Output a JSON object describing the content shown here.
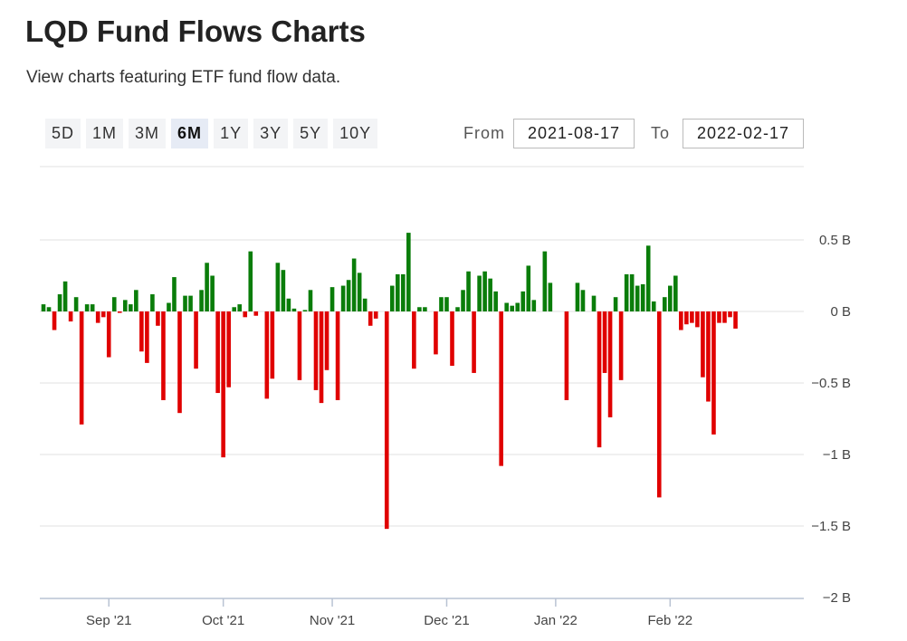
{
  "header": {
    "title": "LQD Fund Flows Charts",
    "subtitle": "View charts featuring ETF fund flow data."
  },
  "range_buttons": [
    {
      "label": "5D",
      "active": false
    },
    {
      "label": "1M",
      "active": false
    },
    {
      "label": "3M",
      "active": false
    },
    {
      "label": "6M",
      "active": true
    },
    {
      "label": "1Y",
      "active": false
    },
    {
      "label": "3Y",
      "active": false
    },
    {
      "label": "5Y",
      "active": false
    },
    {
      "label": "10Y",
      "active": false
    }
  ],
  "date_range": {
    "from_label": "From",
    "from_value": "2021-08-17",
    "to_label": "To",
    "to_value": "2022-02-17"
  },
  "colors": {
    "positive": "#0a7d0a",
    "negative": "#e00000",
    "grid": "#e2e2e2",
    "axis": "#b9c3d3"
  },
  "chart_data": {
    "type": "bar",
    "title": "",
    "xlabel": "",
    "ylabel": "",
    "ylim": [
      -2,
      0.5
    ],
    "y_ticks": [
      {
        "value": 0.5,
        "label": "0.5 B"
      },
      {
        "value": 0,
        "label": "0 B"
      },
      {
        "value": -0.5,
        "label": "−0.5 B"
      },
      {
        "value": -1,
        "label": "−1 B"
      },
      {
        "value": -1.5,
        "label": "−1.5 B"
      },
      {
        "value": -2,
        "label": "−2 B"
      }
    ],
    "x_ticks": [
      {
        "label": "Sep '21",
        "index": 12
      },
      {
        "label": "Oct '21",
        "index": 33
      },
      {
        "label": "Nov '21",
        "index": 53
      },
      {
        "label": "Dec '21",
        "index": 74
      },
      {
        "label": "Jan '22",
        "index": 94
      },
      {
        "label": "Feb '22",
        "index": 115
      }
    ],
    "grid": true,
    "legend": "none",
    "unit": "B",
    "values": [
      0.05,
      0.03,
      -0.13,
      0.12,
      0.21,
      -0.07,
      0.1,
      -0.79,
      0.05,
      0.05,
      -0.08,
      -0.04,
      -0.32,
      0.1,
      -0.01,
      0.08,
      0.05,
      0.15,
      -0.28,
      -0.36,
      0.12,
      -0.1,
      -0.62,
      0.06,
      0.24,
      -0.71,
      0.11,
      0.11,
      -0.4,
      0.15,
      0.34,
      0.25,
      -0.57,
      -1.02,
      -0.53,
      0.03,
      0.05,
      -0.04,
      0.42,
      -0.03,
      0.0,
      -0.61,
      -0.47,
      0.34,
      0.29,
      0.09,
      0.02,
      -0.48,
      0.01,
      0.15,
      -0.55,
      -0.64,
      -0.41,
      0.17,
      -0.62,
      0.18,
      0.22,
      0.37,
      0.27,
      0.09,
      -0.1,
      -0.05,
      0.0,
      -1.52,
      0.18,
      0.26,
      0.26,
      0.55,
      -0.4,
      0.03,
      0.03,
      0.0,
      -0.3,
      0.1,
      0.1,
      -0.38,
      0.03,
      0.15,
      0.28,
      -0.43,
      0.25,
      0.28,
      0.23,
      0.14,
      -1.08,
      0.06,
      0.04,
      0.06,
      0.14,
      0.32,
      0.08,
      0.0,
      0.42,
      0.2,
      0.0,
      0.0,
      -0.62,
      0.0,
      0.2,
      0.15,
      0.0,
      0.11,
      -0.95,
      -0.43,
      -0.74,
      0.1,
      -0.48,
      0.26,
      0.26,
      0.18,
      0.19,
      0.46,
      0.07,
      -1.3,
      0.1,
      0.18,
      0.25,
      -0.13,
      -0.09,
      -0.08,
      -0.11,
      -0.46,
      -0.63,
      -0.86,
      -0.08,
      -0.08,
      -0.04,
      -0.12
    ]
  }
}
